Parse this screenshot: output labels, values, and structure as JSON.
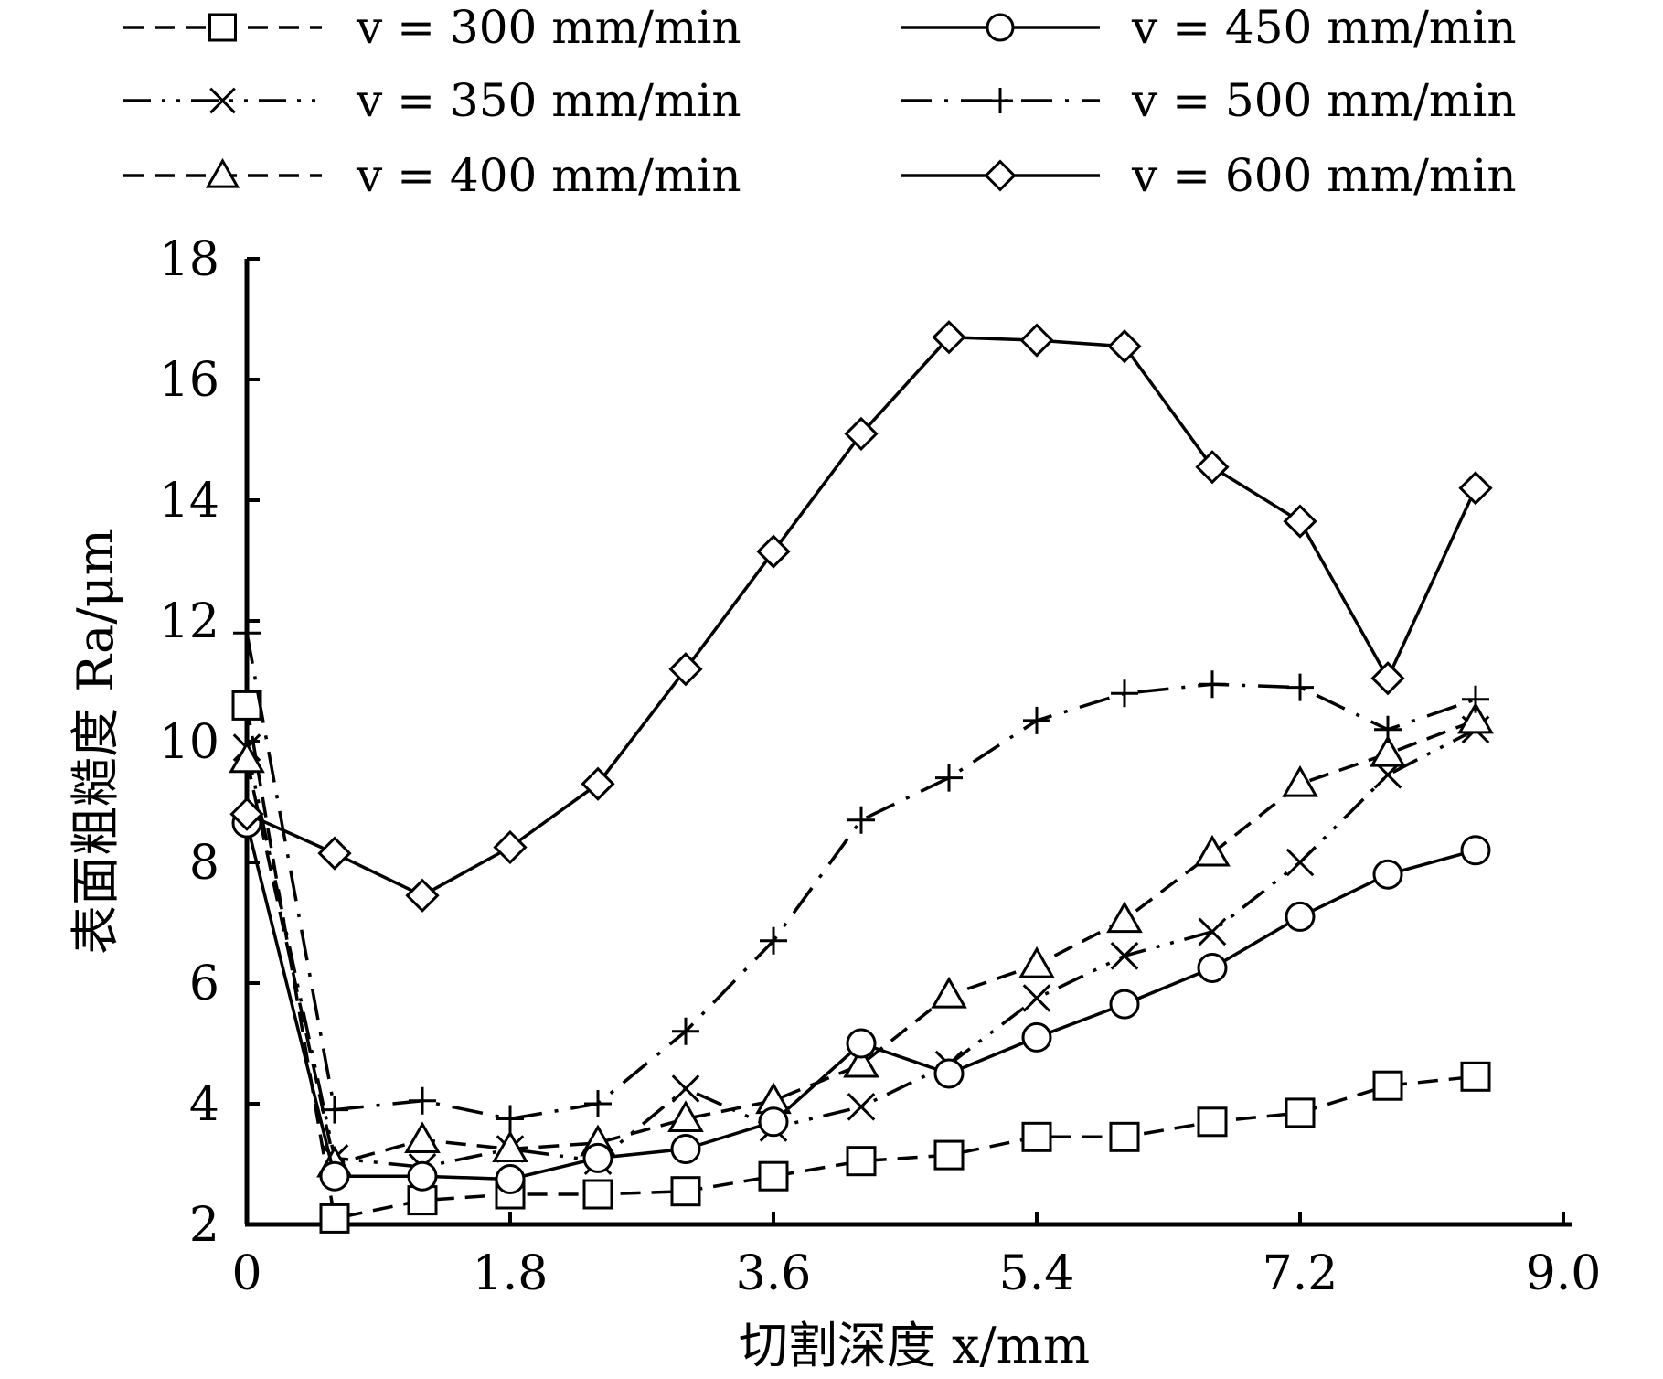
{
  "chart_data": {
    "type": "line",
    "xlabel": "切割深度 x/mm",
    "ylabel": "表面粗糙度 Ra/μm",
    "xlim": [
      0,
      9.0
    ],
    "ylim": [
      2,
      18
    ],
    "xticks": [
      "0",
      "1.8",
      "3.6",
      "5.4",
      "7.2",
      "9.0"
    ],
    "yticks": [
      "2",
      "4",
      "6",
      "8",
      "10",
      "12",
      "14",
      "16",
      "18"
    ],
    "grid": false,
    "legend_position": "top",
    "x": [
      0,
      0.6,
      1.2,
      1.8,
      2.4,
      3.0,
      3.6,
      4.2,
      4.8,
      5.4,
      6.0,
      6.6,
      7.2,
      7.8,
      8.4
    ],
    "series": [
      {
        "name": "v = 300 mm/min",
        "marker": "square",
        "line": "dashed",
        "values": [
          10.6,
          2.1,
          2.4,
          2.5,
          2.5,
          2.55,
          2.8,
          3.05,
          3.15,
          3.45,
          3.45,
          3.7,
          3.85,
          4.3,
          4.45
        ]
      },
      {
        "name": "v = 350 mm/min",
        "marker": "x",
        "line": "dash-dot-dot",
        "values": [
          9.9,
          3.1,
          2.95,
          3.25,
          3.05,
          4.25,
          3.6,
          3.95,
          4.65,
          5.75,
          6.45,
          6.85,
          8.0,
          9.45,
          10.2
        ]
      },
      {
        "name": "v = 400 mm/min",
        "marker": "triangle",
        "line": "dashed",
        "values": [
          9.7,
          3.0,
          3.4,
          3.25,
          3.35,
          3.75,
          4.05,
          4.65,
          5.8,
          6.3,
          7.05,
          8.15,
          9.3,
          9.8,
          10.35
        ]
      },
      {
        "name": "v = 450 mm/min",
        "marker": "circle",
        "line": "solid",
        "values": [
          8.65,
          2.8,
          2.8,
          2.75,
          3.1,
          3.25,
          3.7,
          5.0,
          4.5,
          5.1,
          5.65,
          6.25,
          7.1,
          7.8,
          8.2
        ]
      },
      {
        "name": "v = 500 mm/min",
        "marker": "plus",
        "line": "dash-dot",
        "values": [
          11.8,
          3.9,
          4.05,
          3.75,
          4.0,
          5.2,
          6.7,
          8.7,
          9.4,
          10.35,
          10.8,
          10.95,
          10.9,
          10.2,
          10.7
        ]
      },
      {
        "name": "v = 600 mm/min",
        "marker": "diamond",
        "line": "solid",
        "values": [
          8.8,
          8.15,
          7.45,
          8.25,
          9.3,
          11.2,
          13.15,
          15.1,
          16.7,
          16.65,
          16.55,
          14.55,
          13.65,
          11.05,
          14.2
        ]
      }
    ]
  }
}
